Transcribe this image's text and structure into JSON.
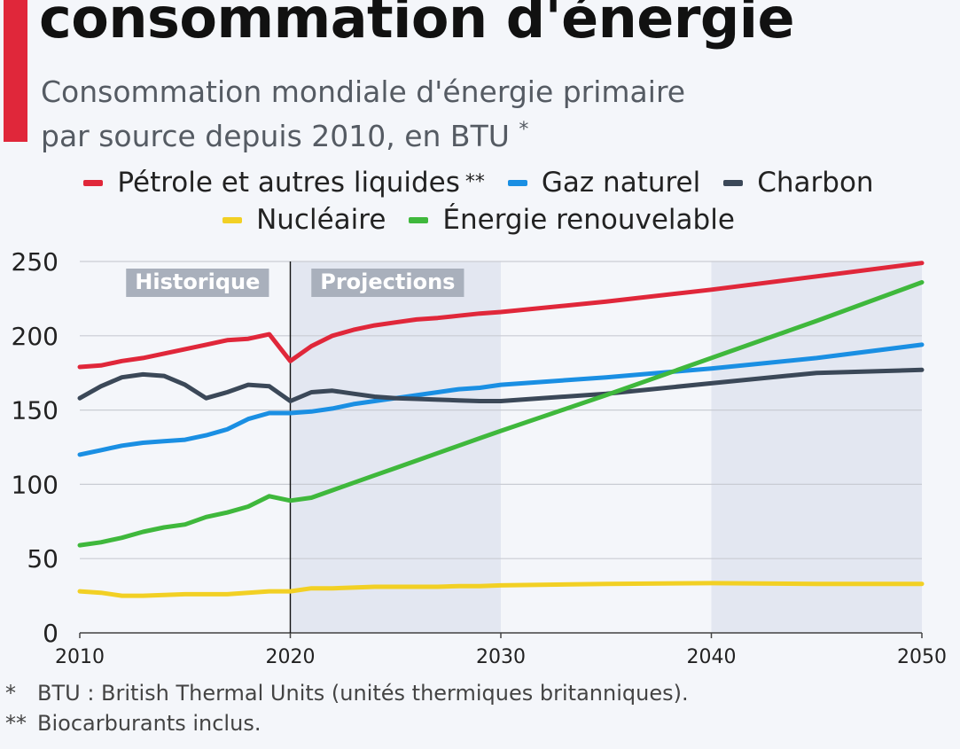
{
  "title": "consommation d'énergie",
  "subtitle_line1": "Consommation mondiale d'énergie primaire",
  "subtitle_line2": "par source depuis 2010, en BTU",
  "subtitle_mark": "*",
  "footnotes": [
    {
      "mark": "*",
      "text": "BTU : British Thermal Units (unités thermiques britanniques)."
    },
    {
      "mark": "**",
      "text": "Biocarburants inclus."
    }
  ],
  "colors": {
    "accent": "#e0273a",
    "shade": "#e3e7f1",
    "grid": "#c9ccd3",
    "region_label_bg": "#a9b0bc"
  },
  "chart_data": {
    "type": "line",
    "xlim": [
      2010,
      2050
    ],
    "ylim": [
      0,
      250
    ],
    "x_ticks": [
      2010,
      2020,
      2030,
      2040,
      2050
    ],
    "y_ticks": [
      0,
      50,
      100,
      150,
      200,
      250
    ],
    "grid": true,
    "legend_position": "top-center",
    "regions": [
      {
        "label": "Historique",
        "from": 2010,
        "to": 2020,
        "shaded": false
      },
      {
        "label": "Projections",
        "from": 2020,
        "to": 2050,
        "shaded": true
      }
    ],
    "shaded_bands": [
      [
        2020,
        2030
      ],
      [
        2040,
        2050
      ]
    ],
    "divider_x": 2020,
    "series": [
      {
        "name": "Pétrole et autres liquides",
        "name_suffix": "**",
        "color": "#e0273a",
        "points": [
          [
            2010,
            179
          ],
          [
            2011,
            180
          ],
          [
            2012,
            183
          ],
          [
            2013,
            185
          ],
          [
            2014,
            188
          ],
          [
            2015,
            191
          ],
          [
            2016,
            194
          ],
          [
            2017,
            197
          ],
          [
            2018,
            198
          ],
          [
            2019,
            201
          ],
          [
            2020,
            183
          ],
          [
            2021,
            193
          ],
          [
            2022,
            200
          ],
          [
            2023,
            204
          ],
          [
            2024,
            207
          ],
          [
            2025,
            209
          ],
          [
            2026,
            211
          ],
          [
            2027,
            212
          ],
          [
            2028,
            213.5
          ],
          [
            2029,
            215
          ],
          [
            2030,
            216
          ],
          [
            2035,
            223
          ],
          [
            2040,
            231
          ],
          [
            2045,
            240
          ],
          [
            2050,
            249
          ]
        ]
      },
      {
        "name": "Gaz naturel",
        "name_suffix": "",
        "color": "#1a8fe3",
        "points": [
          [
            2010,
            120
          ],
          [
            2011,
            123
          ],
          [
            2012,
            126
          ],
          [
            2013,
            128
          ],
          [
            2014,
            129
          ],
          [
            2015,
            130
          ],
          [
            2016,
            133
          ],
          [
            2017,
            137
          ],
          [
            2018,
            144
          ],
          [
            2019,
            148
          ],
          [
            2020,
            148
          ],
          [
            2021,
            149
          ],
          [
            2022,
            151
          ],
          [
            2023,
            154
          ],
          [
            2024,
            156
          ],
          [
            2025,
            158
          ],
          [
            2026,
            160
          ],
          [
            2027,
            162
          ],
          [
            2028,
            164
          ],
          [
            2029,
            165
          ],
          [
            2030,
            167
          ],
          [
            2035,
            172
          ],
          [
            2040,
            178
          ],
          [
            2045,
            185
          ],
          [
            2050,
            194
          ]
        ]
      },
      {
        "name": "Charbon",
        "name_suffix": "",
        "color": "#3b4858",
        "points": [
          [
            2010,
            158
          ],
          [
            2011,
            166
          ],
          [
            2012,
            172
          ],
          [
            2013,
            174
          ],
          [
            2014,
            173
          ],
          [
            2015,
            167
          ],
          [
            2016,
            158
          ],
          [
            2017,
            162
          ],
          [
            2018,
            167
          ],
          [
            2019,
            166
          ],
          [
            2020,
            156
          ],
          [
            2021,
            162
          ],
          [
            2022,
            163
          ],
          [
            2023,
            161
          ],
          [
            2024,
            159
          ],
          [
            2025,
            158
          ],
          [
            2026,
            157.5
          ],
          [
            2027,
            157
          ],
          [
            2028,
            156.5
          ],
          [
            2029,
            156
          ],
          [
            2030,
            156
          ],
          [
            2035,
            161
          ],
          [
            2040,
            168
          ],
          [
            2045,
            175
          ],
          [
            2050,
            177
          ]
        ]
      },
      {
        "name": "Nucléaire",
        "name_suffix": "",
        "color": "#f2d024",
        "points": [
          [
            2010,
            28
          ],
          [
            2011,
            27
          ],
          [
            2012,
            25
          ],
          [
            2013,
            25
          ],
          [
            2014,
            25.5
          ],
          [
            2015,
            26
          ],
          [
            2016,
            26
          ],
          [
            2017,
            26
          ],
          [
            2018,
            27
          ],
          [
            2019,
            28
          ],
          [
            2020,
            28
          ],
          [
            2021,
            30
          ],
          [
            2022,
            30
          ],
          [
            2023,
            30.5
          ],
          [
            2024,
            31
          ],
          [
            2025,
            31
          ],
          [
            2026,
            31
          ],
          [
            2027,
            31
          ],
          [
            2028,
            31.5
          ],
          [
            2029,
            31.5
          ],
          [
            2030,
            32
          ],
          [
            2035,
            33
          ],
          [
            2040,
            33.5
          ],
          [
            2045,
            33
          ],
          [
            2050,
            33
          ]
        ]
      },
      {
        "name": "Énergie renouvelable",
        "name_suffix": "",
        "color": "#3fb83c",
        "points": [
          [
            2010,
            59
          ],
          [
            2011,
            61
          ],
          [
            2012,
            64
          ],
          [
            2013,
            68
          ],
          [
            2014,
            71
          ],
          [
            2015,
            73
          ],
          [
            2016,
            78
          ],
          [
            2017,
            81
          ],
          [
            2018,
            85
          ],
          [
            2019,
            92
          ],
          [
            2020,
            89
          ],
          [
            2021,
            91
          ],
          [
            2022,
            96
          ],
          [
            2023,
            101
          ],
          [
            2024,
            106
          ],
          [
            2025,
            111
          ],
          [
            2026,
            116
          ],
          [
            2027,
            121
          ],
          [
            2028,
            126
          ],
          [
            2029,
            131
          ],
          [
            2030,
            136
          ],
          [
            2035,
            160
          ],
          [
            2040,
            185
          ],
          [
            2045,
            210
          ],
          [
            2050,
            236
          ]
        ]
      }
    ]
  }
}
